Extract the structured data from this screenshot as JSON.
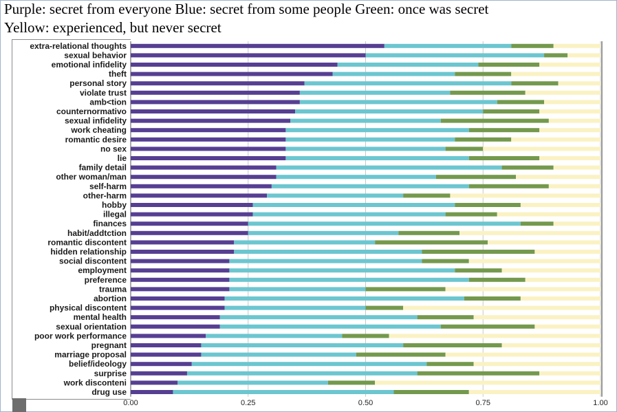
{
  "title_lines": [
    "Purple: secret from everyone Blue: secret from some people Green: once was secret",
    "Yellow: experienced, but never secret"
  ],
  "colors": {
    "purple": "#563f92",
    "blue": "#6cc6d0",
    "green": "#74994d",
    "yellow": "#fbf2c4",
    "grid": "#c8c8c8",
    "axis": "#555555"
  },
  "chart_data": {
    "type": "bar",
    "orientation": "horizontal",
    "stacked": true,
    "xlim": [
      0,
      1
    ],
    "x_ticks": [
      0,
      0.25,
      0.5,
      0.75,
      1
    ],
    "x_tick_labels": [
      "0.00",
      "0.25",
      "0.50",
      "0.75",
      "1.00"
    ],
    "grid": true,
    "series_colors": [
      "#563f92",
      "#6cc6d0",
      "#74994d",
      "#fbf2c4"
    ],
    "categories": [
      "extra-relational thoughts",
      "sexual behavior",
      "emotional infidelity",
      "theft",
      "personal story",
      "violate trust",
      "amb<tion",
      "counternormativo",
      "sexual infidelity",
      "work cheating",
      "romantic desire",
      "no sex",
      "lie",
      "family detail",
      "other woman/man",
      "self-harm",
      "other-harm",
      "hobby",
      "illegal",
      "finances",
      "habit/addtction",
      "romantic discontent",
      "hidden relationship",
      "social discontent",
      "employment",
      "preference",
      "trauma",
      "abortion",
      "physical discontent",
      "mental health",
      "sexual orientation",
      "poor work performance",
      "pregnant",
      "marriage proposal",
      "belief/ideology",
      "surprise",
      "work disconteni",
      "drug use"
    ],
    "series": [
      {
        "values": [
          0.54,
          0.5,
          0.44,
          0.43,
          0.37,
          0.36,
          0.36,
          0.35,
          0.34,
          0.33,
          0.33,
          0.33,
          0.33,
          0.31,
          0.31,
          0.3,
          0.29,
          0.26,
          0.26,
          0.25,
          0.25,
          0.22,
          0.22,
          0.21,
          0.21,
          0.21,
          0.21,
          0.2,
          0.2,
          0.19,
          0.19,
          0.16,
          0.15,
          0.15,
          0.13,
          0.12,
          0.1,
          0.09
        ]
      },
      {
        "values": [
          0.27,
          0.38,
          0.3,
          0.26,
          0.44,
          0.32,
          0.42,
          0.4,
          0.32,
          0.39,
          0.36,
          0.34,
          0.39,
          0.48,
          0.34,
          0.42,
          0.29,
          0.43,
          0.41,
          0.58,
          0.32,
          0.3,
          0.4,
          0.41,
          0.48,
          0.51,
          0.29,
          0.51,
          0.3,
          0.42,
          0.47,
          0.29,
          0.43,
          0.33,
          0.5,
          0.49,
          0.32,
          0.47
        ]
      },
      {
        "values": [
          0.09,
          0.05,
          0.13,
          0.12,
          0.1,
          0.16,
          0.1,
          0.12,
          0.23,
          0.15,
          0.12,
          0.08,
          0.15,
          0.11,
          0.17,
          0.17,
          0.1,
          0.14,
          0.11,
          0.07,
          0.13,
          0.24,
          0.24,
          0.1,
          0.1,
          0.12,
          0.17,
          0.12,
          0.08,
          0.12,
          0.2,
          0.1,
          0.21,
          0.19,
          0.1,
          0.26,
          0.1,
          0.16
        ]
      },
      {
        "values": [
          0.1,
          0.07,
          0.13,
          0.19,
          0.09,
          0.16,
          0.12,
          0.13,
          0.11,
          0.13,
          0.19,
          0.25,
          0.13,
          0.1,
          0.18,
          0.11,
          0.32,
          0.17,
          0.22,
          0.1,
          0.3,
          0.24,
          0.14,
          0.28,
          0.21,
          0.16,
          0.33,
          0.17,
          0.42,
          0.27,
          0.14,
          0.45,
          0.21,
          0.33,
          0.27,
          0.13,
          0.48,
          0.28
        ]
      }
    ]
  }
}
